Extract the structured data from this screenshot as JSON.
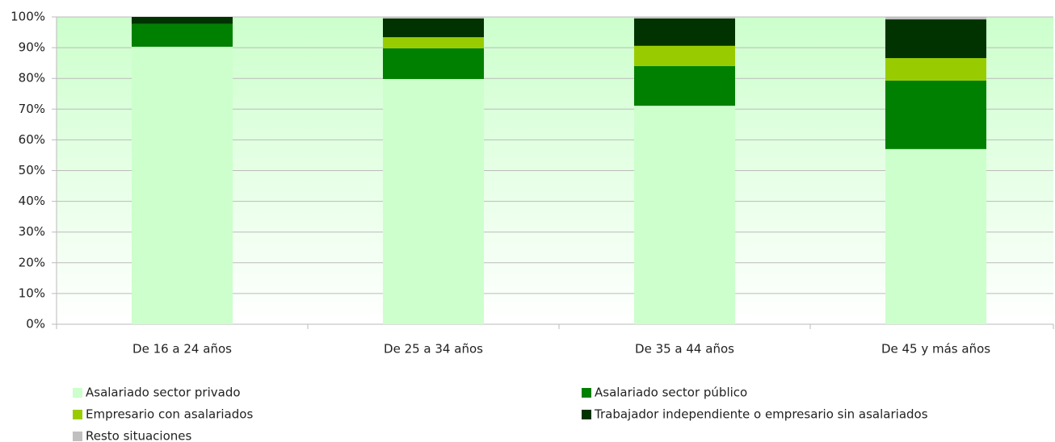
{
  "chart_data": {
    "type": "stacked_bar",
    "categories": [
      "De 16 a 24 años",
      "De 25 a 34 años",
      "De 35 a 44 años",
      "De 45 y más años"
    ],
    "series": [
      {
        "name": "Asalariado sector privado",
        "color": "#ccffcc",
        "values": [
          90.3,
          79.8,
          71.1,
          57.0
        ]
      },
      {
        "name": "Asalariado sector público",
        "color": "#008000",
        "values": [
          7.4,
          10.0,
          12.9,
          22.3
        ]
      },
      {
        "name": "Empresario con asalariados",
        "color": "#99cc00",
        "values": [
          0,
          3.6,
          6.6,
          7.3
        ]
      },
      {
        "name": "Trabajador independiente o empresario sin asalariados",
        "color": "#003300",
        "values": [
          2.3,
          6.1,
          8.9,
          12.6
        ]
      },
      {
        "name": "Resto situaciones",
        "color": "#c0c0c0",
        "values": [
          0,
          0.5,
          0.5,
          0.8
        ]
      }
    ],
    "ylim": [
      0,
      100
    ],
    "yticks": [
      {
        "value": 0,
        "label": "0%"
      },
      {
        "value": 10,
        "label": "10%"
      },
      {
        "value": 20,
        "label": "20%"
      },
      {
        "value": 30,
        "label": "30%"
      },
      {
        "value": 40,
        "label": "40%"
      },
      {
        "value": 50,
        "label": "50%"
      },
      {
        "value": 60,
        "label": "60%"
      },
      {
        "value": 70,
        "label": "70%"
      },
      {
        "value": 80,
        "label": "80%"
      },
      {
        "value": 90,
        "label": "90%"
      },
      {
        "value": 100,
        "label": "100%"
      }
    ],
    "grid": true
  }
}
